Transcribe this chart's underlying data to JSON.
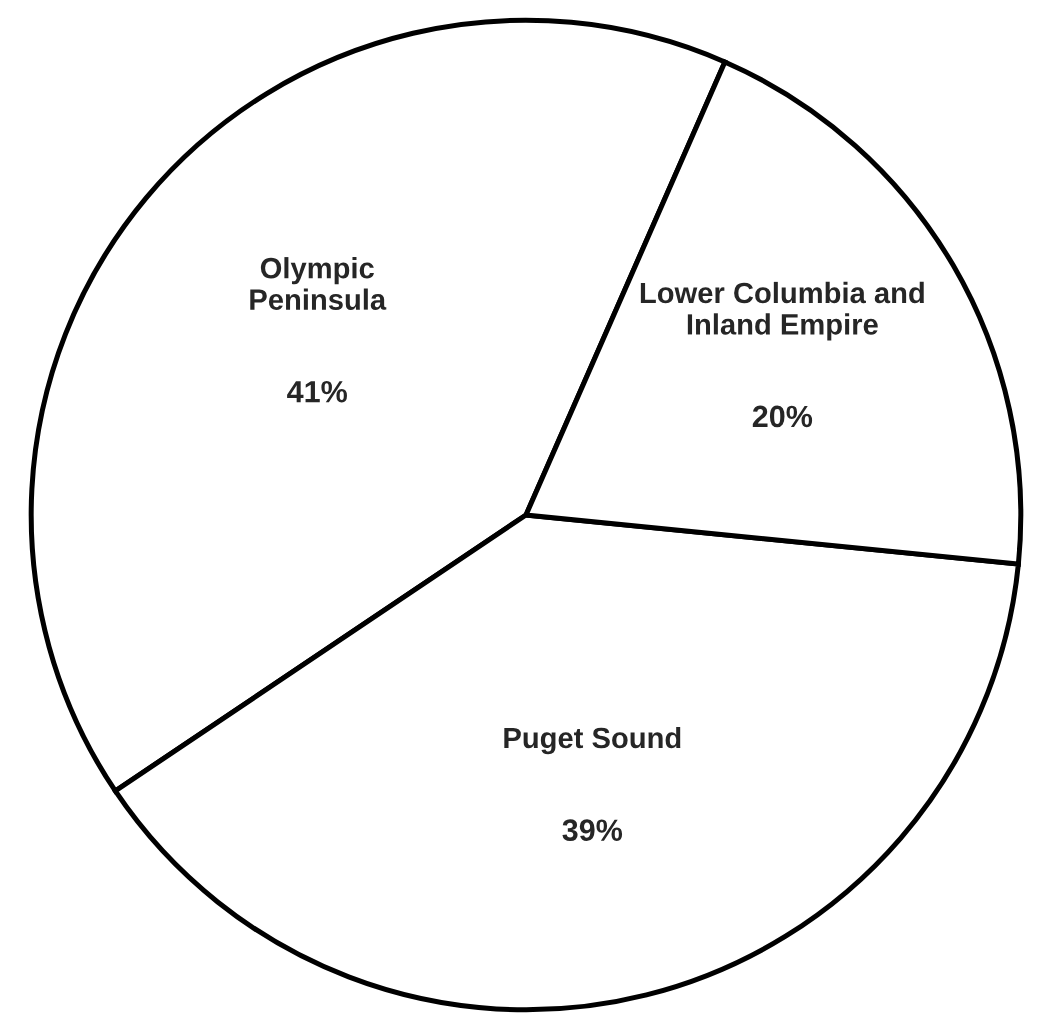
{
  "chart_data": {
    "type": "pie",
    "categories": [
      "Olympic\nPeninsula",
      "Puget Sound",
      "Lower Columbia and\nInland Empire"
    ],
    "values": [
      41,
      39,
      20
    ],
    "colors": [
      "#ffffff",
      "#ffffff",
      "#ffffff"
    ],
    "value_labels": [
      "41%",
      "39%",
      "20%"
    ]
  }
}
